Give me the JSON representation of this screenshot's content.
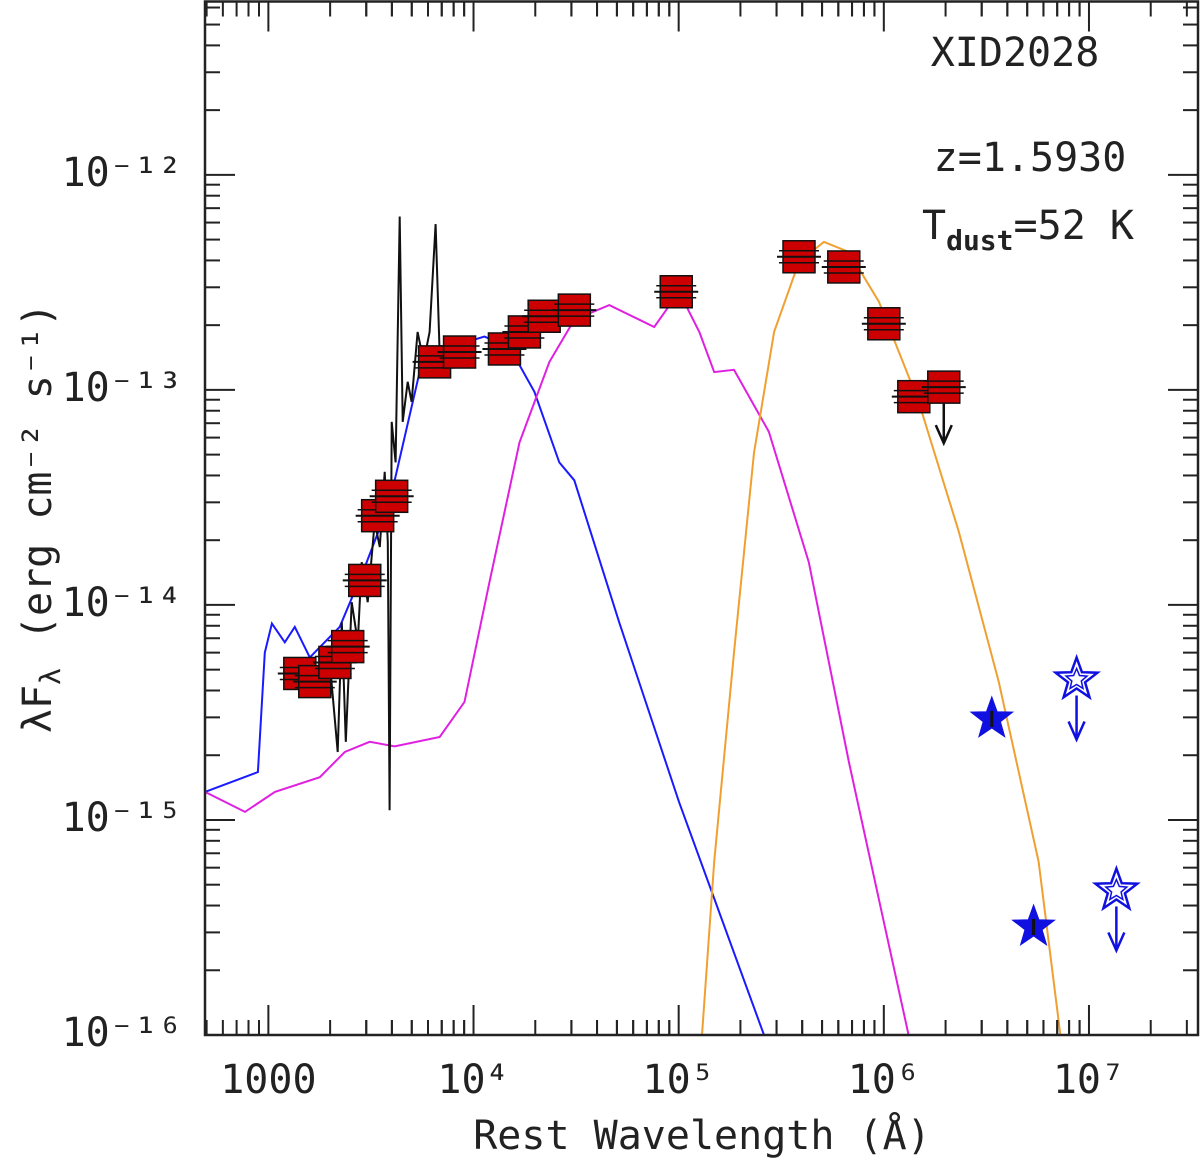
{
  "chart_data": {
    "type": "sed",
    "xlabel": "Rest Wavelength (Å)",
    "ylabel": {
      "main": "λF",
      "sub": "λ",
      "unit": "(erg cm⁻² s⁻¹)"
    },
    "annotations": [
      "XID2028",
      "z=1.5930"
    ],
    "tdust": {
      "main": "T",
      "sub": "dust",
      "after": "=52 K"
    },
    "xscale": "log",
    "yscale": "log",
    "xlim": [
      491,
      34000000
    ],
    "ylim": [
      1e-16,
      6.4e-12
    ],
    "xticks": [
      1000,
      {
        "value": 10000,
        "label": "10⁴"
      },
      {
        "value": 100000,
        "label": "10⁵"
      },
      {
        "value": 1000000,
        "label": "10⁶"
      },
      {
        "value": 10000000,
        "label": "10⁷"
      }
    ],
    "yticks": [
      {
        "value": 1e-16,
        "label": "10⁻¹⁶"
      },
      {
        "value": 1e-15,
        "label": "10⁻¹⁵"
      },
      {
        "value": 1e-14,
        "label": "10⁻¹⁴"
      },
      {
        "value": 1e-13,
        "label": "10⁻¹³"
      },
      {
        "value": 1e-12,
        "label": "10⁻¹²"
      }
    ],
    "series": [
      {
        "kind": "line",
        "color": "#1a1aff",
        "x": [
          491,
          889,
          961,
          1040,
          1202,
          1346,
          1592,
          2228,
          2951,
          3900,
          5460,
          7640,
          11300,
          14970,
          19800,
          26200,
          31000,
          51300,
          100500,
          260600
        ],
        "y": [
          1.35e-15,
          1.67e-15,
          6e-15,
          8.2e-15,
          6.7e-15,
          7.9e-15,
          5.7e-15,
          7.9e-15,
          1.5e-14,
          3e-14,
          1.21e-13,
          1.58e-13,
          1.77e-13,
          1.58e-13,
          9.8e-14,
          4.6e-14,
          3.8e-14,
          8.3e-15,
          1.21e-15,
          1e-16
        ]
      },
      {
        "kind": "line",
        "color": "#e020e0",
        "x": [
          491,
          769,
          1076,
          1782,
          2357,
          3120,
          4130,
          6840,
          9040,
          11970,
          16750,
          23440,
          31000,
          45900,
          64300,
          76000,
          100500,
          126000,
          149000,
          186000,
          275000,
          431000,
          676000,
          1000000,
          1320000
        ],
        "y": [
          1.35e-15,
          1.09e-15,
          1.35e-15,
          1.58e-15,
          2.07e-15,
          2.31e-15,
          2.2e-15,
          2.43e-15,
          3.54e-15,
          1.28e-14,
          5.7e-14,
          1.35e-13,
          2.12e-13,
          2.48e-13,
          2.12e-13,
          1.96e-13,
          2.86e-13,
          1.86e-13,
          1.21e-13,
          1.24e-13,
          6.4e-14,
          1.58e-14,
          1.86e-15,
          3.36e-16,
          1e-16
        ]
      },
      {
        "kind": "line",
        "color": "#f0a030",
        "x": [
          130000,
          149000,
          186000,
          233000,
          292000,
          386000,
          511000,
          676000,
          946000,
          1480000,
          2320000,
          3630000,
          5680000,
          7260000
        ],
        "y": [
          1e-16,
          6.4e-16,
          6e-15,
          5.1e-14,
          1.86e-13,
          3.94e-13,
          4.88e-13,
          4.38e-13,
          2.57e-13,
          8.8e-14,
          2.19e-14,
          4.4e-15,
          6.4e-16,
          1e-16
        ]
      },
      {
        "kind": "line",
        "color": "#111111",
        "x": [
          1992,
          2178,
          2281,
          2384,
          2548,
          2729,
          2851,
          3048,
          3298,
          3491,
          3690,
          3820,
          3900,
          3990,
          4170,
          4365,
          4516,
          4775,
          4992,
          5337,
          5714,
          6109,
          6531,
          6836,
          7640,
          9040
        ],
        "y": [
          5.4e-15,
          2.07e-15,
          8.3e-15,
          2.31e-15,
          1.03e-14,
          6.7e-15,
          1.58e-14,
          1.03e-14,
          2.43e-14,
          1.86e-14,
          4.16e-14,
          1.96e-14,
          1.11e-15,
          7.1e-14,
          4.6e-14,
          6.4e-13,
          7.1e-14,
          1.09e-13,
          8.8e-14,
          1.86e-13,
          1.35e-13,
          1.86e-13,
          5.9e-13,
          1.5e-13,
          1.58e-13,
          1.67e-13
        ]
      },
      {
        "kind": "points",
        "marker": "square",
        "color": "#cc0000",
        "x": [
          1423,
          1683,
          2110,
          2436,
          2950,
          3410,
          3990,
          6460,
          8550,
          14150,
          17700,
          22100,
          31000,
          97300,
          386000,
          638000,
          1000000,
          1400000,
          1960000
        ],
        "y": [
          4.8e-15,
          4.4e-15,
          5.4e-15,
          6.4e-15,
          1.3e-14,
          2.6e-14,
          3.2e-14,
          1.35e-13,
          1.5e-13,
          1.55e-13,
          1.86e-13,
          2.2e-13,
          2.35e-13,
          2.86e-13,
          4.16e-13,
          3.73e-13,
          2.03e-13,
          9.3e-14,
          1.03e-13
        ],
        "upper_limit": [
          false,
          false,
          false,
          false,
          false,
          false,
          false,
          false,
          false,
          false,
          false,
          false,
          false,
          false,
          false,
          false,
          false,
          false,
          true
        ]
      },
      {
        "kind": "points",
        "marker": "star",
        "color": "#1010e0",
        "x": [
          3360000,
          5370000
        ],
        "y": [
          2.95e-15,
          3.18e-16
        ],
        "upper_limit": [
          false,
          false
        ]
      },
      {
        "kind": "points",
        "marker": "open-star",
        "color": "#1010e0",
        "x": [
          8700000,
          13600000
        ],
        "y": [
          4.5e-15,
          4.7e-16
        ],
        "upper_limit": [
          true,
          true
        ]
      }
    ]
  }
}
